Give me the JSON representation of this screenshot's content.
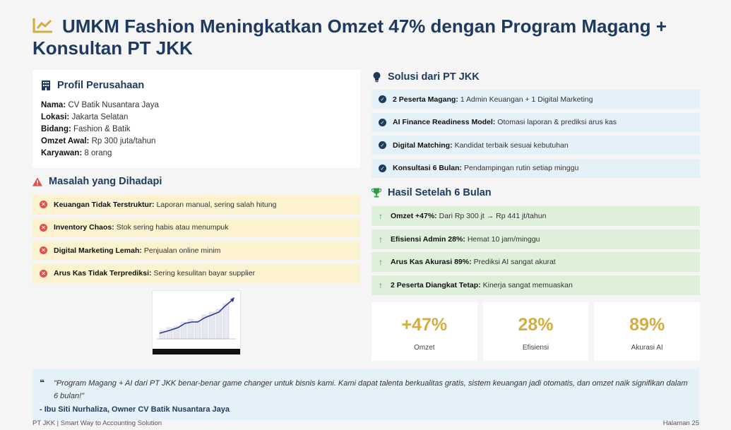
{
  "title": "UMKM Fashion Meningkatkan Omzet 47% dengan Program Magang + Konsultan PT JKK",
  "profile": {
    "heading": "Profil Perusahaan",
    "rows": [
      {
        "label": "Nama:",
        "value": "CV Batik Nusantara Jaya"
      },
      {
        "label": "Lokasi:",
        "value": "Jakarta Selatan"
      },
      {
        "label": "Bidang:",
        "value": "Fashion & Batik"
      },
      {
        "label": "Omzet Awal:",
        "value": "Rp 300 juta/tahun"
      },
      {
        "label": "Karyawan:",
        "value": "8 orang"
      }
    ]
  },
  "masalah": {
    "heading": "Masalah yang Dihadapi",
    "items": [
      {
        "label": "Keuangan Tidak Terstruktur:",
        "text": "Laporan manual, sering salah hitung"
      },
      {
        "label": "Inventory Chaos:",
        "text": "Stok sering habis atau menumpuk"
      },
      {
        "label": "Digital Marketing Lemah:",
        "text": "Penjualan online minim"
      },
      {
        "label": "Arus Kas Tidak Terprediksi:",
        "text": "Sering kesulitan bayar supplier"
      }
    ]
  },
  "solusi": {
    "heading": "Solusi dari PT JKK",
    "items": [
      {
        "label": "2 Peserta Magang:",
        "text": "1 Admin Keuangan + 1 Digital Marketing"
      },
      {
        "label": "AI Finance Readiness Model:",
        "text": "Otomasi laporan & prediksi arus kas"
      },
      {
        "label": "Digital Matching:",
        "text": "Kandidat terbaik sesuai kebutuhan"
      },
      {
        "label": "Konsultasi 6 Bulan:",
        "text": "Pendampingan rutin setiap minggu"
      }
    ]
  },
  "hasil": {
    "heading": "Hasil Setelah 6 Bulan",
    "items": [
      {
        "label": "Omzet +47%:",
        "text": "Dari Rp 300 jt → Rp 441 jt/tahun"
      },
      {
        "label": "Efisiensi Admin 28%:",
        "text": "Hemat 10 jam/minggu"
      },
      {
        "label": "Arus Kas Akurasi 89%:",
        "text": "Prediksi AI sangat akurat"
      },
      {
        "label": "2 Peserta Diangkat Tetap:",
        "text": "Kinerja sangat memuaskan"
      }
    ]
  },
  "stats": [
    {
      "value": "+47%",
      "label": "Omzet"
    },
    {
      "value": "28%",
      "label": "Efisiensi"
    },
    {
      "value": "89%",
      "label": "Akurasi AI"
    }
  ],
  "quote": {
    "mark": "❝",
    "text": "\"Program Magang + AI dari PT JKK benar-benar game changer untuk bisnis kami. Kami dapat talenta berkualitas gratis, sistem keuangan jadi otomatis, dan omzet naik signifikan dalam 6 bulan!\"",
    "author": "- Ibu Siti Nurhaliza, Owner CV Batik Nusantara Jaya"
  },
  "footer": {
    "left": "PT JKK | Smart Way to Accounting Solution",
    "right": "Halaman 25"
  },
  "colors": {
    "title": "#1e3a5f",
    "accent_gold": "#d4ad42",
    "problem_bg": "#fdf2cf",
    "solution_bg": "#e5f1f8",
    "result_bg": "#dff0da"
  },
  "icons": {
    "title": "chart-line-icon",
    "profile": "building-icon",
    "masalah": "warning-icon",
    "solusi": "lightbulb-icon",
    "hasil": "trophy-icon"
  }
}
